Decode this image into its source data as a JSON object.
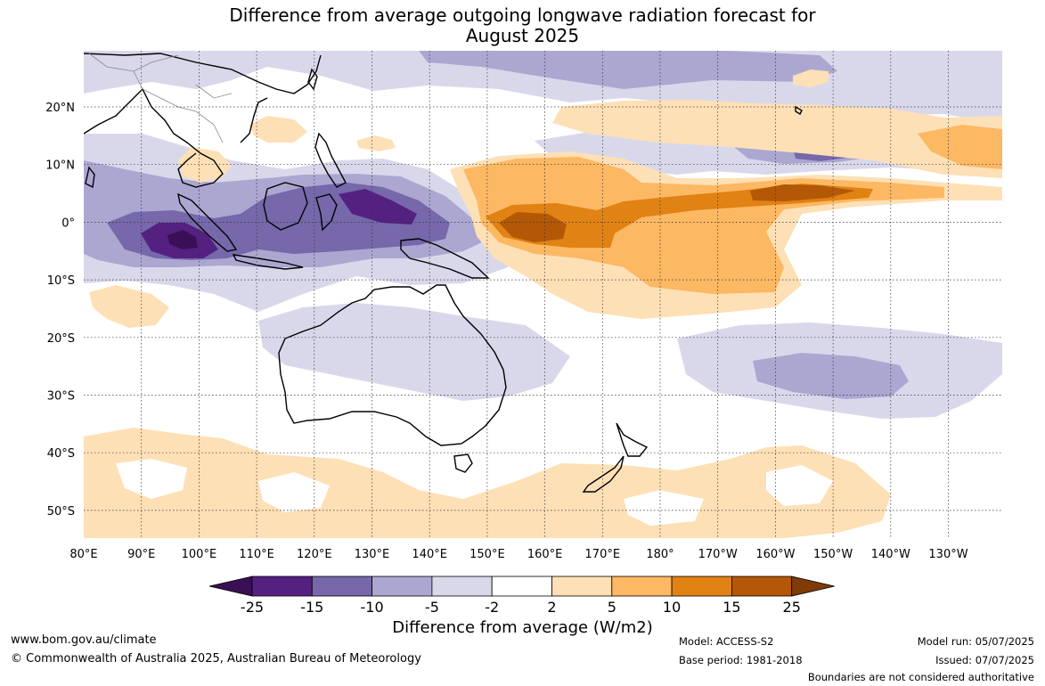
{
  "title": {
    "line1": "Difference from average outgoing longwave radiation forecast for",
    "line2": "August 2025"
  },
  "map": {
    "lon_labels": [
      "80°E",
      "90°E",
      "100°E",
      "110°E",
      "120°E",
      "130°E",
      "140°E",
      "150°E",
      "160°E",
      "170°E",
      "180°",
      "170°W",
      "160°W",
      "150°W",
      "140°W",
      "130°W"
    ],
    "lat_labels": [
      "20°N",
      "10°N",
      "0°",
      "10°S",
      "20°S",
      "30°S",
      "40°S",
      "50°S"
    ]
  },
  "colorbar": {
    "ticks": [
      "-25",
      "-15",
      "-10",
      "-5",
      "-2",
      "2",
      "5",
      "10",
      "15",
      "25"
    ],
    "colors": [
      "#3a0f55",
      "#542181",
      "#7668aa",
      "#aca7d1",
      "#d9d8eb",
      "#ffffff",
      "#fee0b6",
      "#fdb863",
      "#e08214",
      "#b35806",
      "#7f3b08"
    ],
    "label": "Difference from average (W/m2)"
  },
  "footer": {
    "website": "www.bom.gov.au/climate",
    "copyright": "© Commonwealth of Australia 2025, Australian Bureau of Meteorology",
    "model": "Model: ACCESS-S2",
    "base_period": "Base period: 1981-2018",
    "model_run": "Model run: 05/07/2025",
    "issued": "Issued: 07/07/2025",
    "disclaimer": "Boundaries are not considered authoritative"
  }
}
